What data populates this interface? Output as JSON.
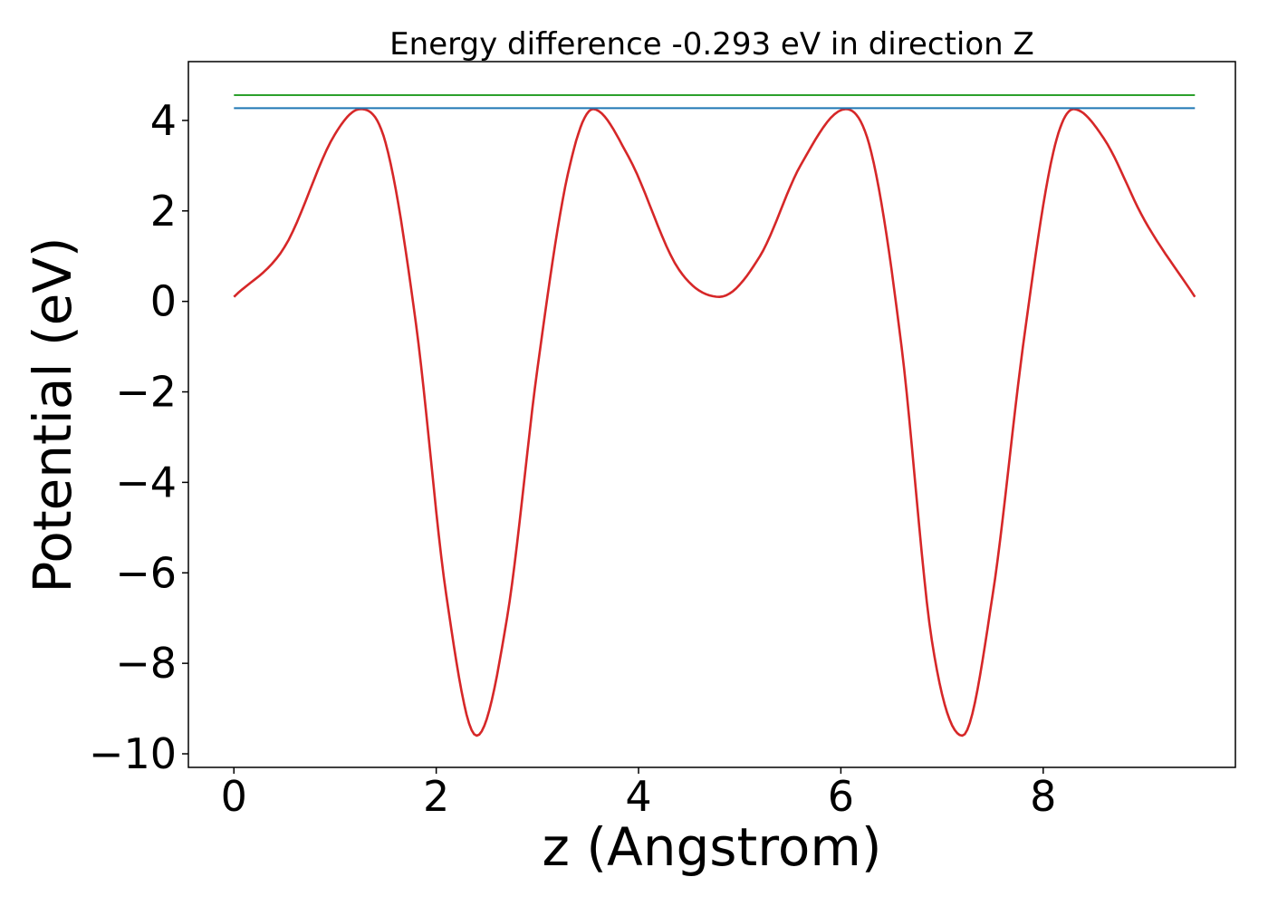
{
  "chart_data": {
    "type": "line",
    "title": "Energy difference -0.293 eV in direction Z",
    "xlabel": "z (Angstrom)",
    "ylabel": "Potential (eV)",
    "xlim": [
      -0.45,
      9.9
    ],
    "ylim": [
      -10.3,
      5.3
    ],
    "xticks": [
      0,
      2,
      4,
      6,
      8
    ],
    "xtick_labels": [
      "0",
      "2",
      "4",
      "6",
      "8"
    ],
    "yticks": [
      4,
      2,
      0,
      -2,
      -4,
      -6,
      -8,
      -10
    ],
    "ytick_labels": [
      "4",
      "2",
      "0",
      "−2",
      "−4",
      "−6",
      "−8",
      "−10"
    ],
    "grid": false,
    "legend": "none",
    "series": [
      {
        "color": "#d62728",
        "x": [
          0.0,
          0.5,
          1.0,
          1.25,
          1.5,
          1.8,
          2.1,
          2.4,
          2.7,
          3.0,
          3.3,
          3.55,
          3.9,
          4.4,
          4.8,
          5.2,
          5.6,
          6.05,
          6.3,
          6.6,
          6.9,
          7.2,
          7.5,
          7.8,
          8.1,
          8.3,
          8.6,
          9.0,
          9.5
        ],
        "y": [
          0.1,
          1.2,
          3.7,
          4.25,
          3.5,
          -0.5,
          -6.5,
          -9.6,
          -7.0,
          -1.5,
          2.8,
          4.25,
          3.2,
          0.7,
          0.1,
          1.0,
          3.0,
          4.25,
          3.3,
          -1.0,
          -7.5,
          -9.6,
          -6.5,
          -1.0,
          3.3,
          4.25,
          3.6,
          1.8,
          0.1
        ]
      },
      {
        "color": "#1f77b4",
        "x": [
          0.0,
          9.5
        ],
        "y": [
          4.27,
          4.27
        ]
      },
      {
        "color": "#2ca02c",
        "x": [
          0.0,
          9.5
        ],
        "y": [
          4.56,
          4.56
        ]
      }
    ]
  }
}
